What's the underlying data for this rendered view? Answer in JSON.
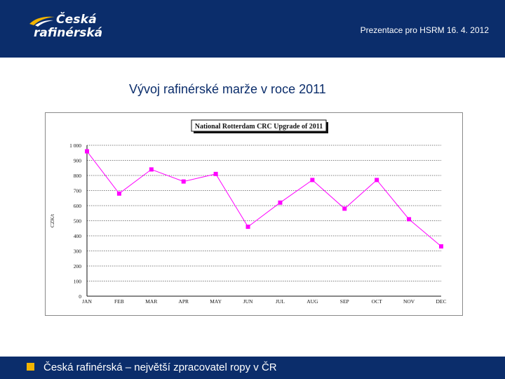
{
  "header": {
    "logo_line1": "Česká",
    "logo_line2": "rafinérská",
    "right_text": "Prezentace pro HSRM 16. 4. 2012"
  },
  "slide": {
    "title": "Vývoj rafinérské marže v roce 2011"
  },
  "footer": {
    "text": "Česká rafinérská – největší zpracovatel ropy v ČR"
  },
  "colors": {
    "brand_navy": "#0b2d6b",
    "accent_yellow": "#f2b400",
    "series_magenta": "#ff00ff"
  },
  "chart_data": {
    "type": "line",
    "title": "National Rotterdam CRC Upgrade of 2011",
    "ylabel": "CZK/t",
    "xlabel": "",
    "categories": [
      "JAN",
      "FEB",
      "MAR",
      "APR",
      "MAY",
      "JUN",
      "JUL",
      "AUG",
      "SEP",
      "OCT",
      "NOV",
      "DEC"
    ],
    "series": [
      {
        "values": [
          960,
          680,
          840,
          760,
          810,
          460,
          620,
          770,
          580,
          770,
          510,
          330
        ]
      }
    ],
    "ylim": [
      0,
      1000
    ],
    "yticks": [
      0,
      100,
      200,
      300,
      400,
      500,
      600,
      700,
      800,
      900,
      1000
    ],
    "ytick_labels": [
      "0",
      "100",
      "200",
      "300",
      "400",
      "500",
      "600",
      "700",
      "800",
      "900",
      "1 000"
    ],
    "grid": true,
    "grid_style": "dotted horizontal",
    "marker": "square"
  }
}
